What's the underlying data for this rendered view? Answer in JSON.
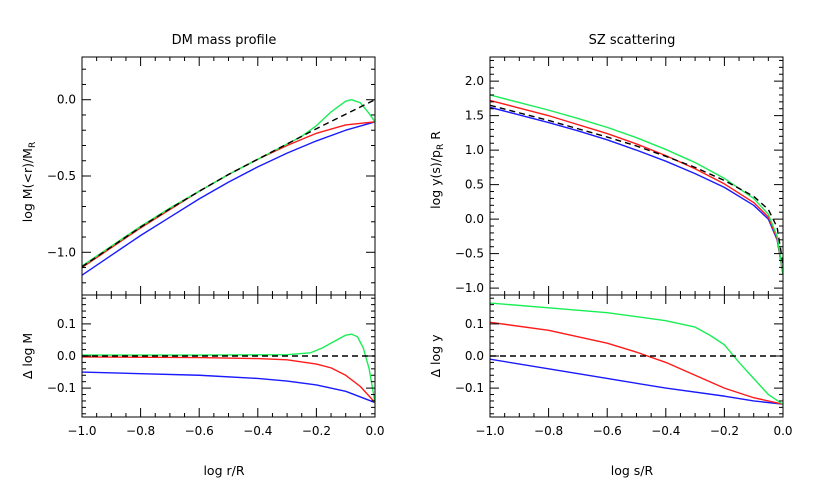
{
  "chart_data": [
    {
      "id": "dm_top",
      "type": "line",
      "title": "DM mass profile",
      "xlabel": "",
      "ylabel": "log M(<r)/M",
      "ylabel_sub": "R",
      "xlim": [
        -1.0,
        0.0
      ],
      "ylim": [
        -1.28,
        0.28
      ],
      "xticks": [
        -1.0,
        -0.8,
        -0.6,
        -0.4,
        -0.2,
        0.0
      ],
      "yticks": [
        -1.0,
        -0.5,
        0.0
      ],
      "ytick_labels": [
        "−1.0",
        "−0.5",
        "0.0"
      ],
      "series": [
        {
          "color": "#1a1aff",
          "x": [
            -1.0,
            -0.9,
            -0.8,
            -0.7,
            -0.6,
            -0.5,
            -0.4,
            -0.3,
            -0.2,
            -0.1,
            0.0
          ],
          "y": [
            -1.15,
            -1.02,
            -0.89,
            -0.77,
            -0.65,
            -0.54,
            -0.44,
            -0.35,
            -0.27,
            -0.2,
            -0.145
          ]
        },
        {
          "color": "#ff1a1a",
          "x": [
            -1.0,
            -0.9,
            -0.8,
            -0.7,
            -0.6,
            -0.5,
            -0.4,
            -0.3,
            -0.2,
            -0.1,
            0.0
          ],
          "y": [
            -1.1,
            -0.97,
            -0.84,
            -0.72,
            -0.6,
            -0.49,
            -0.39,
            -0.3,
            -0.22,
            -0.165,
            -0.145
          ]
        },
        {
          "color": "#1aee55",
          "x": [
            -1.0,
            -0.9,
            -0.8,
            -0.7,
            -0.6,
            -0.5,
            -0.4,
            -0.3,
            -0.25,
            -0.2,
            -0.15,
            -0.1,
            -0.08,
            -0.05,
            -0.02,
            0.0
          ],
          "y": [
            -1.09,
            -0.96,
            -0.83,
            -0.71,
            -0.6,
            -0.49,
            -0.39,
            -0.29,
            -0.24,
            -0.17,
            -0.08,
            -0.01,
            0.0,
            -0.02,
            -0.09,
            -0.145
          ]
        },
        {
          "color": "#000000",
          "dashed": true,
          "x": [
            -1.0,
            -0.9,
            -0.8,
            -0.7,
            -0.6,
            -0.5,
            -0.4,
            -0.3,
            -0.2,
            -0.1,
            0.0
          ],
          "y": [
            -1.095,
            -0.965,
            -0.835,
            -0.715,
            -0.6,
            -0.49,
            -0.39,
            -0.29,
            -0.19,
            -0.095,
            0.0
          ]
        }
      ]
    },
    {
      "id": "dm_bottom",
      "type": "line",
      "xlabel": "log r/R",
      "ylabel": "Δ log M",
      "xlim": [
        -1.0,
        0.0
      ],
      "ylim": [
        -0.19,
        0.19
      ],
      "xticks": [
        -1.0,
        -0.8,
        -0.6,
        -0.4,
        -0.2,
        0.0
      ],
      "xtick_labels": [
        "−1.0",
        "−0.8",
        "−0.6",
        "−0.4",
        "−0.2",
        "0.0"
      ],
      "yticks": [
        -0.1,
        0.0,
        0.1
      ],
      "ytick_labels": [
        "−0.1",
        "0.0",
        "0.1"
      ],
      "series": [
        {
          "color": "#1a1aff",
          "x": [
            -1.0,
            -0.8,
            -0.6,
            -0.4,
            -0.3,
            -0.2,
            -0.1,
            0.0
          ],
          "y": [
            -0.05,
            -0.055,
            -0.06,
            -0.07,
            -0.078,
            -0.09,
            -0.11,
            -0.145
          ]
        },
        {
          "color": "#ff1a1a",
          "x": [
            -1.0,
            -0.6,
            -0.4,
            -0.3,
            -0.2,
            -0.15,
            -0.1,
            -0.05,
            0.0
          ],
          "y": [
            -0.003,
            -0.005,
            -0.008,
            -0.012,
            -0.025,
            -0.037,
            -0.06,
            -0.095,
            -0.145
          ]
        },
        {
          "color": "#1aee55",
          "x": [
            -1.0,
            -0.6,
            -0.3,
            -0.22,
            -0.18,
            -0.14,
            -0.1,
            -0.08,
            -0.06,
            -0.04,
            -0.02,
            0.0
          ],
          "y": [
            0.003,
            0.003,
            0.004,
            0.01,
            0.025,
            0.045,
            0.065,
            0.068,
            0.06,
            0.025,
            -0.04,
            -0.145
          ]
        },
        {
          "color": "#000000",
          "dashed": true,
          "x": [
            -1.0,
            0.0
          ],
          "y": [
            0.0,
            0.0
          ]
        }
      ]
    },
    {
      "id": "sz_top",
      "type": "line",
      "title": "SZ scattering",
      "xlabel": "",
      "ylabel": "log y(s)/p",
      "ylabel_sub": "R",
      "ylabel_tail": " R",
      "xlim": [
        -1.0,
        0.0
      ],
      "ylim": [
        -1.1,
        2.35
      ],
      "xticks": [
        -1.0,
        -0.8,
        -0.6,
        -0.4,
        -0.2,
        0.0
      ],
      "yticks": [
        -1.0,
        -0.5,
        0.0,
        0.5,
        1.0,
        1.5,
        2.0
      ],
      "ytick_labels": [
        "−1.0",
        "−0.5",
        "0.0",
        "0.5",
        "1.0",
        "1.5",
        "2.0"
      ],
      "series": [
        {
          "color": "#1a1aff",
          "x": [
            -1.0,
            -0.9,
            -0.8,
            -0.7,
            -0.6,
            -0.5,
            -0.4,
            -0.3,
            -0.2,
            -0.1,
            -0.05,
            -0.02,
            0.0
          ],
          "y": [
            1.62,
            1.51,
            1.4,
            1.28,
            1.15,
            1.0,
            0.84,
            0.66,
            0.46,
            0.2,
            0.0,
            -0.3,
            -0.8
          ]
        },
        {
          "color": "#ff1a1a",
          "x": [
            -1.0,
            -0.9,
            -0.8,
            -0.7,
            -0.6,
            -0.5,
            -0.4,
            -0.3,
            -0.2,
            -0.1,
            -0.05,
            -0.02,
            0.0
          ],
          "y": [
            1.72,
            1.61,
            1.5,
            1.37,
            1.24,
            1.09,
            0.92,
            0.73,
            0.51,
            0.24,
            0.03,
            -0.28,
            -0.8
          ]
        },
        {
          "color": "#1aee55",
          "x": [
            -1.0,
            -0.9,
            -0.8,
            -0.7,
            -0.6,
            -0.5,
            -0.4,
            -0.3,
            -0.2,
            -0.1,
            -0.05,
            -0.02,
            0.0
          ],
          "y": [
            1.8,
            1.69,
            1.58,
            1.46,
            1.33,
            1.18,
            1.01,
            0.82,
            0.59,
            0.3,
            0.07,
            -0.25,
            -0.8
          ]
        },
        {
          "color": "#000000",
          "dashed": true,
          "x": [
            -1.0,
            -0.9,
            -0.8,
            -0.7,
            -0.6,
            -0.5,
            -0.4,
            -0.3,
            -0.2,
            -0.1,
            -0.05,
            -0.02,
            0.0
          ],
          "y": [
            1.65,
            1.54,
            1.43,
            1.31,
            1.19,
            1.06,
            0.91,
            0.75,
            0.56,
            0.33,
            0.14,
            -0.12,
            -0.65
          ]
        }
      ]
    },
    {
      "id": "sz_bottom",
      "type": "line",
      "xlabel": "log s/R",
      "ylabel": "Δ log y",
      "xlim": [
        -1.0,
        0.0
      ],
      "ylim": [
        -0.19,
        0.19
      ],
      "xticks": [
        -1.0,
        -0.8,
        -0.6,
        -0.4,
        -0.2,
        0.0
      ],
      "xtick_labels": [
        "−1.0",
        "−0.8",
        "−0.6",
        "−0.4",
        "−0.2",
        "0.0"
      ],
      "yticks": [
        -0.1,
        0.0,
        0.1
      ],
      "ytick_labels": [
        "−0.1",
        "0.0",
        "0.1"
      ],
      "series": [
        {
          "color": "#1a1aff",
          "x": [
            -1.0,
            -0.8,
            -0.6,
            -0.4,
            -0.2,
            -0.1,
            0.0
          ],
          "y": [
            -0.01,
            -0.04,
            -0.07,
            -0.1,
            -0.125,
            -0.14,
            -0.15
          ]
        },
        {
          "color": "#ff1a1a",
          "x": [
            -1.0,
            -0.8,
            -0.6,
            -0.5,
            -0.4,
            -0.3,
            -0.2,
            -0.1,
            0.0
          ],
          "y": [
            0.105,
            0.08,
            0.04,
            0.012,
            -0.02,
            -0.06,
            -0.1,
            -0.13,
            -0.15
          ]
        },
        {
          "color": "#1aee55",
          "x": [
            -1.0,
            -0.8,
            -0.6,
            -0.4,
            -0.3,
            -0.25,
            -0.2,
            -0.15,
            -0.1,
            -0.05,
            0.0
          ],
          "y": [
            0.165,
            0.15,
            0.135,
            0.11,
            0.09,
            0.065,
            0.035,
            -0.02,
            -0.07,
            -0.12,
            -0.15
          ]
        },
        {
          "color": "#000000",
          "dashed": true,
          "x": [
            -1.0,
            0.0
          ],
          "y": [
            0.0,
            0.0
          ]
        }
      ]
    }
  ]
}
